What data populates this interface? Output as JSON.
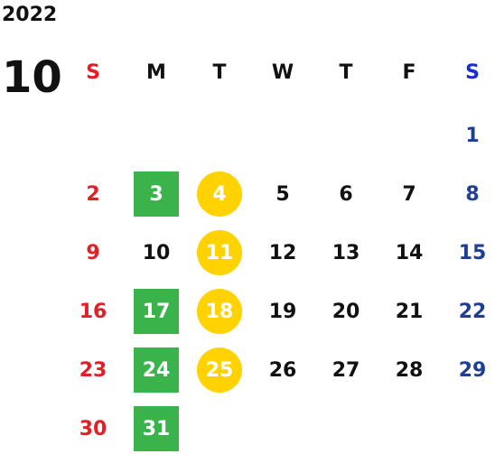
{
  "header": {
    "year": "2022",
    "month": "10"
  },
  "weekdays": [
    "S",
    "M",
    "T",
    "W",
    "T",
    "F",
    "S"
  ],
  "weeks": [
    [
      "",
      "",
      "",
      "",
      "",
      "",
      "1"
    ],
    [
      "2",
      "3",
      "4",
      "5",
      "6",
      "7",
      "8"
    ],
    [
      "9",
      "10",
      "11",
      "12",
      "13",
      "14",
      "15"
    ],
    [
      "16",
      "17",
      "18",
      "19",
      "20",
      "21",
      "22"
    ],
    [
      "23",
      "24",
      "25",
      "26",
      "27",
      "28",
      "29"
    ],
    [
      "30",
      "31",
      "",
      "",
      "",
      "",
      ""
    ]
  ],
  "highlights": {
    "green_square_days": [
      "3",
      "17",
      "24",
      "31"
    ],
    "yellow_circle_days": [
      "4",
      "11",
      "18",
      "25"
    ]
  },
  "colors": {
    "sunday": "#e21f26",
    "saturday_header": "#1a2bd6",
    "saturday": "#1f3f95",
    "green_mark": "#3ab34a",
    "yellow_mark": "#ffd200"
  }
}
